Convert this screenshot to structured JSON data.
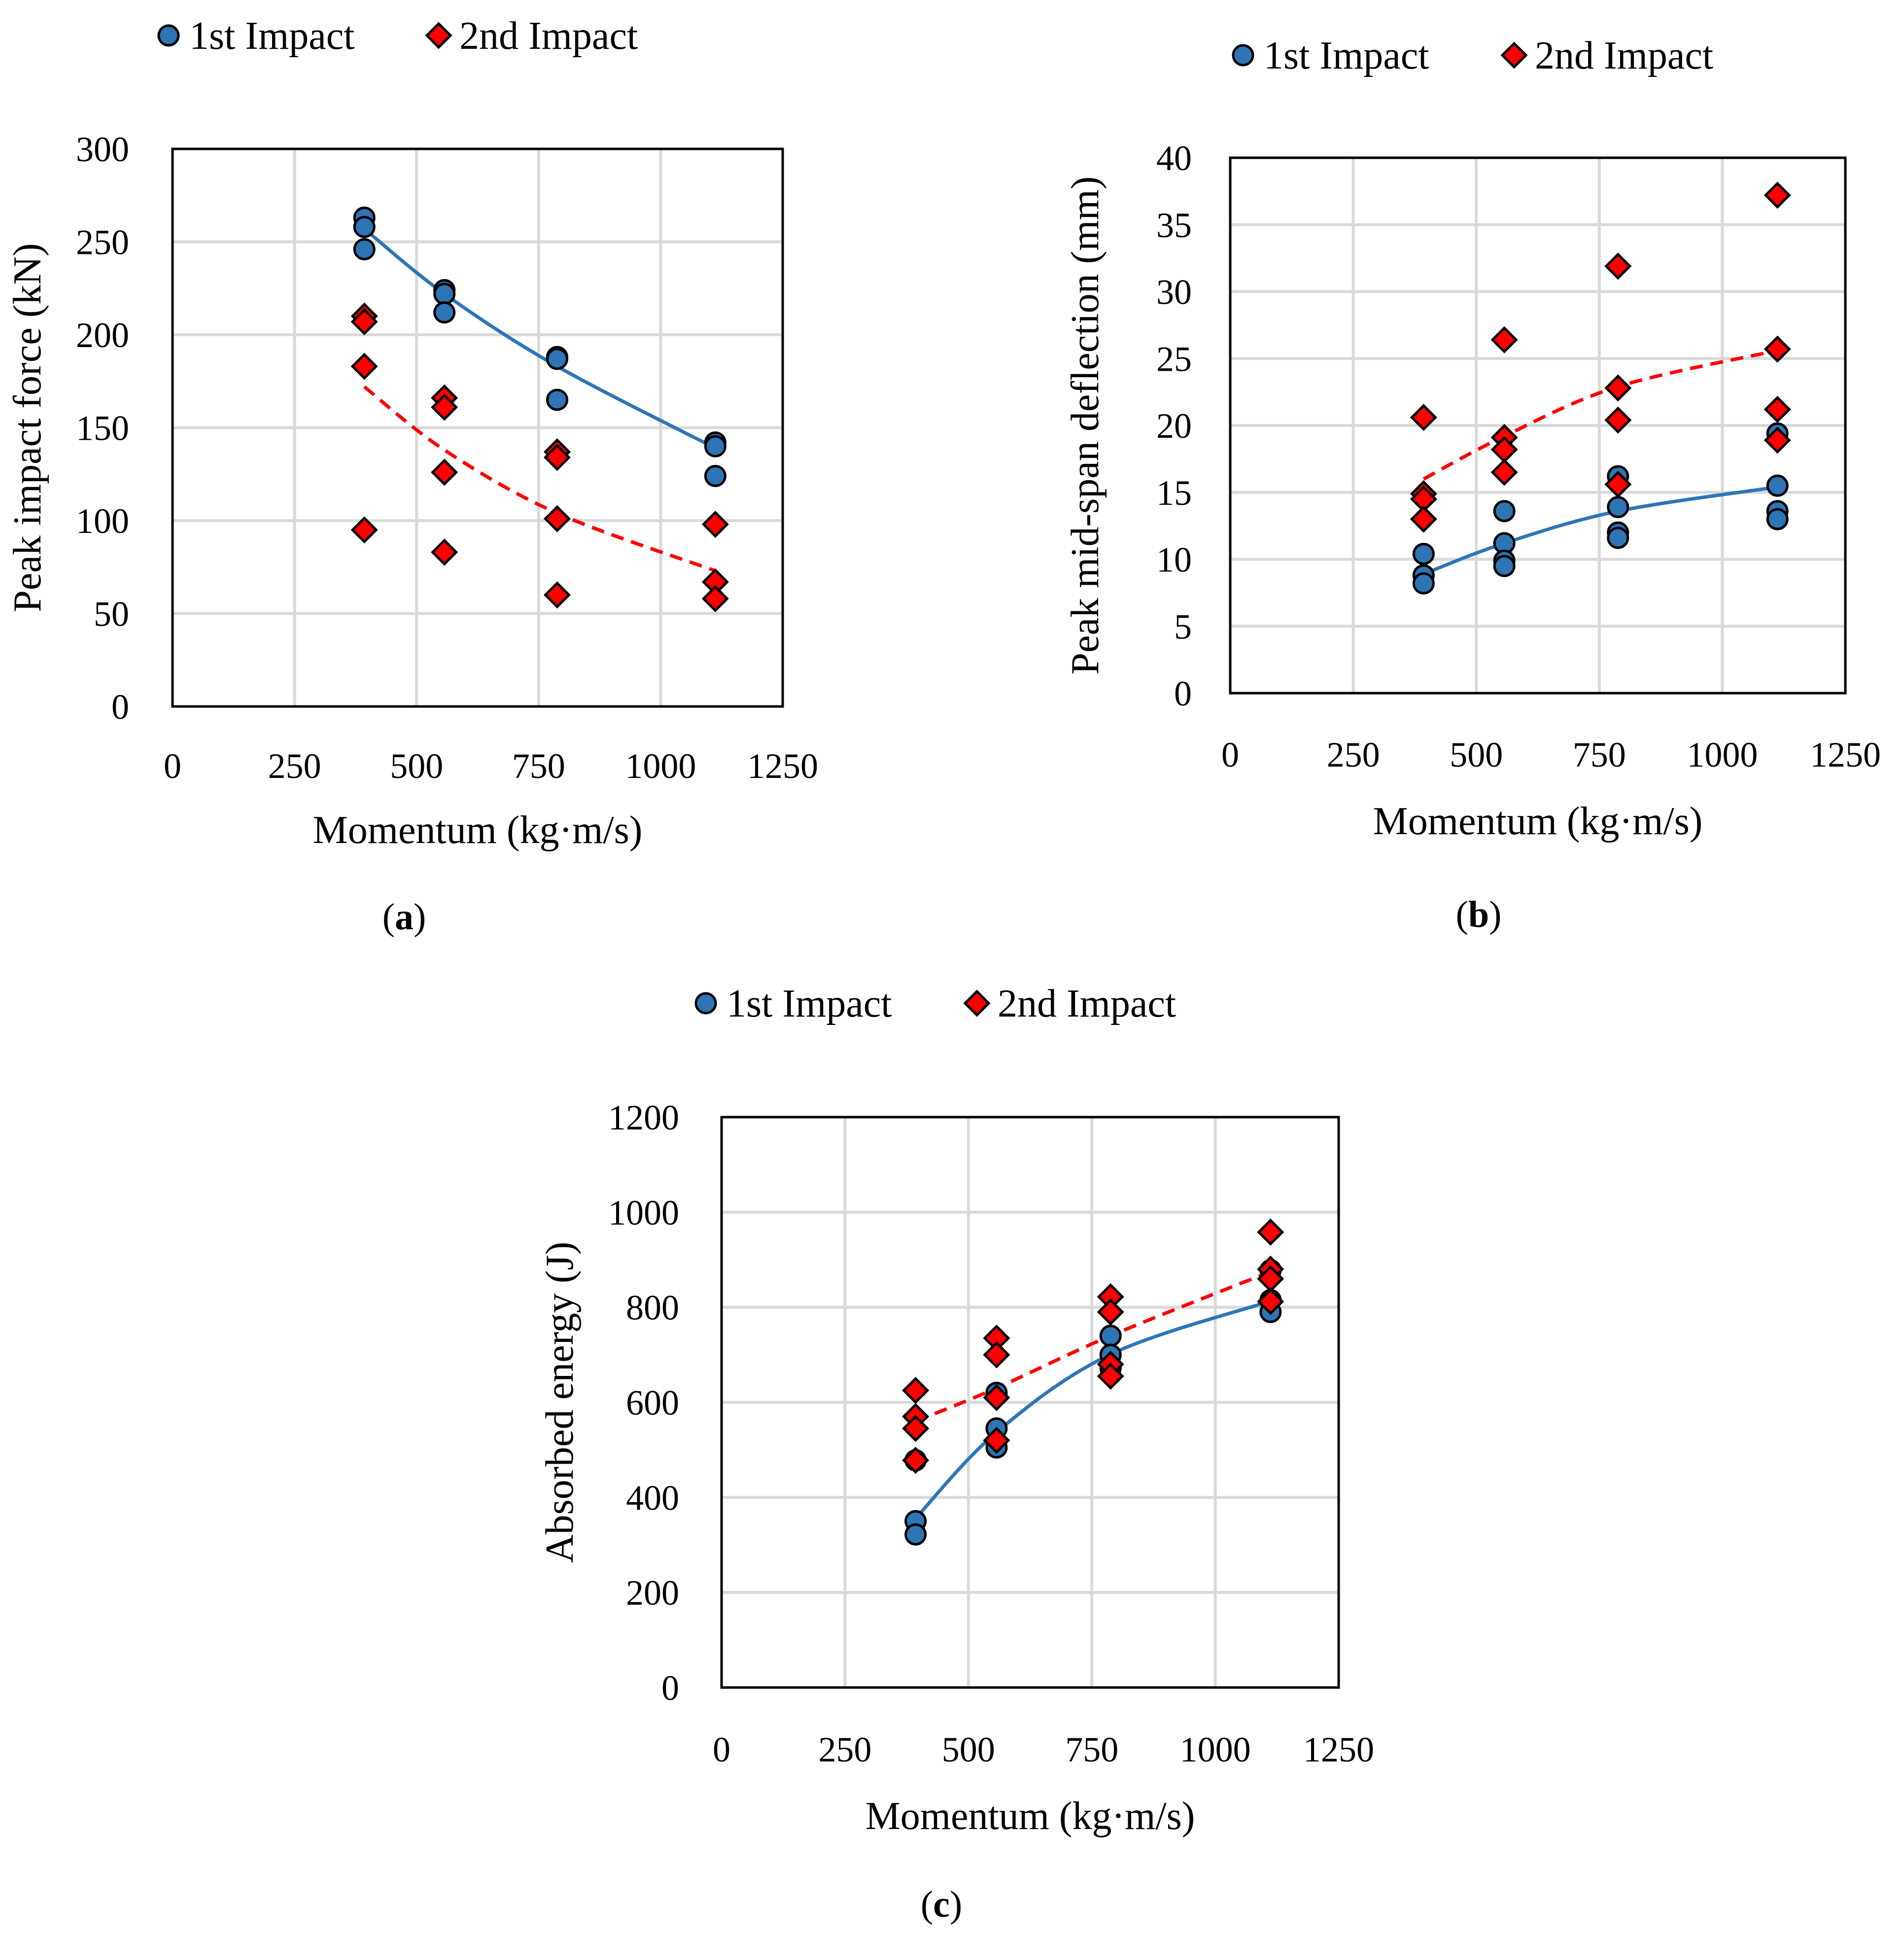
{
  "chart_data": [
    {
      "type": "scatter",
      "panel_label": "a",
      "title": "",
      "xlabel": "Momentum (kg·m/s)",
      "ylabel": "Peak impact force (kN)",
      "xlim": [
        0,
        1250
      ],
      "ylim": [
        0,
        300
      ],
      "xticks": [
        "0",
        "250",
        "500",
        "750",
        "1000",
        "1250"
      ],
      "yticks": [
        "0",
        "50",
        "100",
        "150",
        "200",
        "250",
        "300"
      ],
      "grid": true,
      "legend": [
        "1st Impact",
        "2nd Impact"
      ],
      "legend_position": "top",
      "series": [
        {
          "name": "1st Impact",
          "marker": "circle",
          "color": "#2e75b6",
          "points": [
            [
              393,
              263
            ],
            [
              393,
              258
            ],
            [
              393,
              246
            ],
            [
              557,
              224
            ],
            [
              557,
              222
            ],
            [
              557,
              212
            ],
            [
              788,
              188
            ],
            [
              788,
              187
            ],
            [
              788,
              165
            ],
            [
              1112,
              142
            ],
            [
              1112,
              140
            ],
            [
              1112,
              124
            ]
          ],
          "trend": {
            "style": "solid",
            "color": "#2e75b6",
            "points": [
              [
                393,
                257
              ],
              [
                557,
                222
              ],
              [
                788,
                183
              ],
              [
                1112,
                139
              ]
            ]
          }
        },
        {
          "name": "2nd Impact",
          "marker": "diamond",
          "color": "#ff0000",
          "points": [
            [
              393,
              210
            ],
            [
              393,
              207
            ],
            [
              393,
              183
            ],
            [
              393,
              95
            ],
            [
              557,
              166
            ],
            [
              557,
              161
            ],
            [
              557,
              126
            ],
            [
              557,
              83
            ],
            [
              788,
              137
            ],
            [
              788,
              134
            ],
            [
              788,
              101
            ],
            [
              788,
              60
            ],
            [
              1112,
              98
            ],
            [
              1112,
              67
            ],
            [
              1112,
              58
            ]
          ],
          "trend": {
            "style": "dashed",
            "color": "#ff0000",
            "points": [
              [
                393,
                172
              ],
              [
                557,
                138
              ],
              [
                788,
                104
              ],
              [
                1112,
                73
              ]
            ]
          }
        }
      ]
    },
    {
      "type": "scatter",
      "panel_label": "b",
      "title": "",
      "xlabel": "Momentum (kg·m/s)",
      "ylabel": "Peak mid-span deflection (mm)",
      "xlim": [
        0,
        1250
      ],
      "ylim": [
        0,
        40
      ],
      "xticks": [
        "0",
        "250",
        "500",
        "750",
        "1000",
        "1250"
      ],
      "yticks": [
        "0",
        "5",
        "10",
        "15",
        "20",
        "25",
        "30",
        "35",
        "40"
      ],
      "grid": true,
      "legend": [
        "1st Impact",
        "2nd Impact"
      ],
      "legend_position": "top",
      "series": [
        {
          "name": "1st Impact",
          "marker": "circle",
          "color": "#2e75b6",
          "points": [
            [
              393,
              10.4
            ],
            [
              393,
              8.8
            ],
            [
              393,
              8.2
            ],
            [
              557,
              13.6
            ],
            [
              557,
              11.2
            ],
            [
              557,
              9.9
            ],
            [
              557,
              9.5
            ],
            [
              788,
              16.2
            ],
            [
              788,
              13.9
            ],
            [
              788,
              12.0
            ],
            [
              788,
              11.6
            ],
            [
              1112,
              19.4
            ],
            [
              1112,
              15.5
            ],
            [
              1112,
              13.6
            ],
            [
              1112,
              13.0
            ]
          ],
          "trend": {
            "style": "solid",
            "color": "#2e75b6",
            "points": [
              [
                393,
                8.9
              ],
              [
                557,
                11.2
              ],
              [
                788,
                13.6
              ],
              [
                1112,
                15.4
              ]
            ]
          }
        },
        {
          "name": "2nd Impact",
          "marker": "diamond",
          "color": "#ff0000",
          "points": [
            [
              393,
              20.6
            ],
            [
              393,
              14.9
            ],
            [
              393,
              14.5
            ],
            [
              393,
              13.0
            ],
            [
              557,
              26.4
            ],
            [
              557,
              19.1
            ],
            [
              557,
              18.2
            ],
            [
              557,
              16.5
            ],
            [
              788,
              31.9
            ],
            [
              788,
              22.8
            ],
            [
              788,
              20.4
            ],
            [
              788,
              15.6
            ],
            [
              1112,
              37.2
            ],
            [
              1112,
              25.7
            ],
            [
              1112,
              21.2
            ],
            [
              1112,
              18.9
            ]
          ],
          "trend": {
            "style": "dashed",
            "color": "#ff0000",
            "points": [
              [
                393,
                16.0
              ],
              [
                557,
                19.2
              ],
              [
                788,
                22.9
              ],
              [
                1112,
                25.6
              ]
            ]
          }
        }
      ]
    },
    {
      "type": "scatter",
      "panel_label": "c",
      "title": "",
      "xlabel": "Momentum (kg·m/s)",
      "ylabel": "Absorbed energy (J)",
      "xlim": [
        0,
        1250
      ],
      "ylim": [
        0,
        1200
      ],
      "xticks": [
        "0",
        "250",
        "500",
        "750",
        "1000",
        "1250"
      ],
      "yticks": [
        "0",
        "200",
        "400",
        "600",
        "800",
        "1000",
        "1200"
      ],
      "grid": true,
      "legend": [
        "1st Impact",
        "2nd Impact"
      ],
      "legend_position": "top",
      "series": [
        {
          "name": "1st Impact",
          "marker": "circle",
          "color": "#2e75b6",
          "points": [
            [
              393,
              478
            ],
            [
              393,
              350
            ],
            [
              393,
              322
            ],
            [
              557,
              620
            ],
            [
              557,
              545
            ],
            [
              557,
              505
            ],
            [
              788,
              740
            ],
            [
              788,
              700
            ],
            [
              788,
              672
            ],
            [
              1112,
              878
            ],
            [
              1112,
              815
            ],
            [
              1112,
              790
            ]
          ],
          "trend": {
            "style": "solid",
            "color": "#2e75b6",
            "points": [
              [
                393,
                356
              ],
              [
                557,
                537
              ],
              [
                788,
                701
              ],
              [
                1112,
                813
              ]
            ]
          }
        },
        {
          "name": "2nd Impact",
          "marker": "diamond",
          "color": "#ff0000",
          "points": [
            [
              393,
              625
            ],
            [
              393,
              570
            ],
            [
              393,
              545
            ],
            [
              393,
              478
            ],
            [
              557,
              735
            ],
            [
              557,
              700
            ],
            [
              557,
              610
            ],
            [
              557,
              520
            ],
            [
              788,
              822
            ],
            [
              788,
              790
            ],
            [
              788,
              680
            ],
            [
              788,
              655
            ],
            [
              1112,
              958
            ],
            [
              1112,
              880
            ],
            [
              1112,
              860
            ],
            [
              1112,
              812
            ]
          ],
          "trend": {
            "style": "dashed",
            "color": "#ff0000",
            "points": [
              [
                393,
                560
              ],
              [
                557,
                630
              ],
              [
                788,
                740
              ],
              [
                1112,
                875
              ]
            ]
          }
        }
      ]
    }
  ]
}
